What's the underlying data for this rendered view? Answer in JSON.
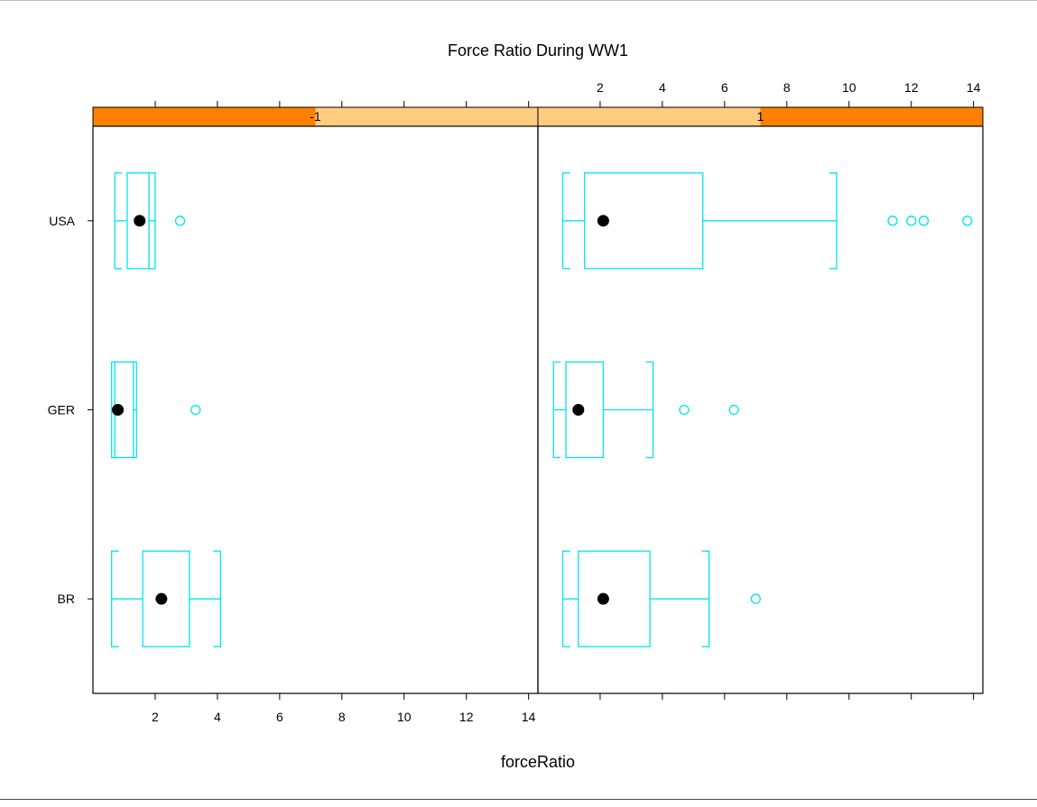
{
  "chart_data": {
    "type": "box",
    "title": "Force Ratio During WW1",
    "xlabel": "forceRatio",
    "ylabel": "",
    "xlim": [
      0,
      14.3
    ],
    "x_ticks": [
      2,
      4,
      6,
      8,
      10,
      12,
      14
    ],
    "categories": [
      "BR",
      "GER",
      "USA"
    ],
    "grid": false,
    "colors": {
      "box": "#00e5ee",
      "median": "#000000",
      "strip_level": "#ff8000",
      "strip_bg": "#ffcc80",
      "axis": "#000000"
    },
    "panels": [
      {
        "strip_label": "-1",
        "strip_level": 0.5,
        "boxes": [
          {
            "category": "BR",
            "whisker_low": 0.6,
            "q1": 1.6,
            "median": 2.2,
            "q3": 3.1,
            "whisker_high": 4.1,
            "outliers": []
          },
          {
            "category": "GER",
            "whisker_low": 0.6,
            "q1": 0.7,
            "median": 0.8,
            "q3": 1.3,
            "whisker_high": 1.4,
            "outliers": [
              3.3
            ]
          },
          {
            "category": "USA",
            "whisker_low": 0.7,
            "q1": 1.1,
            "median": 1.5,
            "q3": 1.8,
            "whisker_high": 2.0,
            "outliers": [
              2.8
            ]
          }
        ]
      },
      {
        "strip_label": "1",
        "strip_level": 0.5,
        "boxes": [
          {
            "category": "BR",
            "whisker_low": 0.8,
            "q1": 1.3,
            "median": 2.1,
            "q3": 3.6,
            "whisker_high": 5.5,
            "outliers": [
              7.0
            ]
          },
          {
            "category": "GER",
            "whisker_low": 0.5,
            "q1": 0.9,
            "median": 1.3,
            "q3": 2.1,
            "whisker_high": 3.7,
            "outliers": [
              4.7,
              6.3
            ]
          },
          {
            "category": "USA",
            "whisker_low": 0.8,
            "q1": 1.5,
            "median": 2.1,
            "q3": 5.3,
            "whisker_high": 9.6,
            "outliers": [
              11.4,
              12.0,
              12.4,
              13.8
            ]
          }
        ]
      }
    ]
  }
}
